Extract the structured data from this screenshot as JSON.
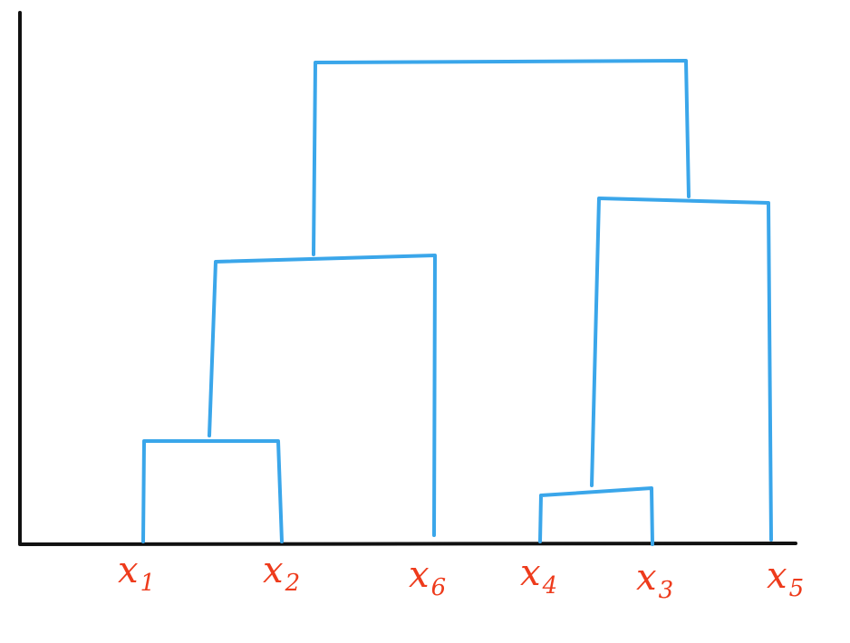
{
  "diagram": {
    "type": "dendrogram",
    "colors": {
      "axis": "#111111",
      "branch": "#3aa6ea",
      "label": "#ee3b1c"
    },
    "leaves": [
      {
        "id": "x1",
        "var": "x",
        "sub": "1"
      },
      {
        "id": "x2",
        "var": "x",
        "sub": "2"
      },
      {
        "id": "x6",
        "var": "x",
        "sub": "6"
      },
      {
        "id": "x4",
        "var": "x",
        "sub": "4"
      },
      {
        "id": "x3",
        "var": "x",
        "sub": "3"
      },
      {
        "id": "x5",
        "var": "x",
        "sub": "5"
      }
    ],
    "merges": [
      {
        "id": "m1",
        "left": "x1",
        "right": "x2"
      },
      {
        "id": "m2",
        "left": "m1",
        "right": "x6"
      },
      {
        "id": "m3",
        "left": "x4",
        "right": "x3"
      },
      {
        "id": "m4",
        "left": "m3",
        "right": "x5"
      },
      {
        "id": "m5",
        "left": "m2",
        "right": "m4"
      }
    ]
  }
}
